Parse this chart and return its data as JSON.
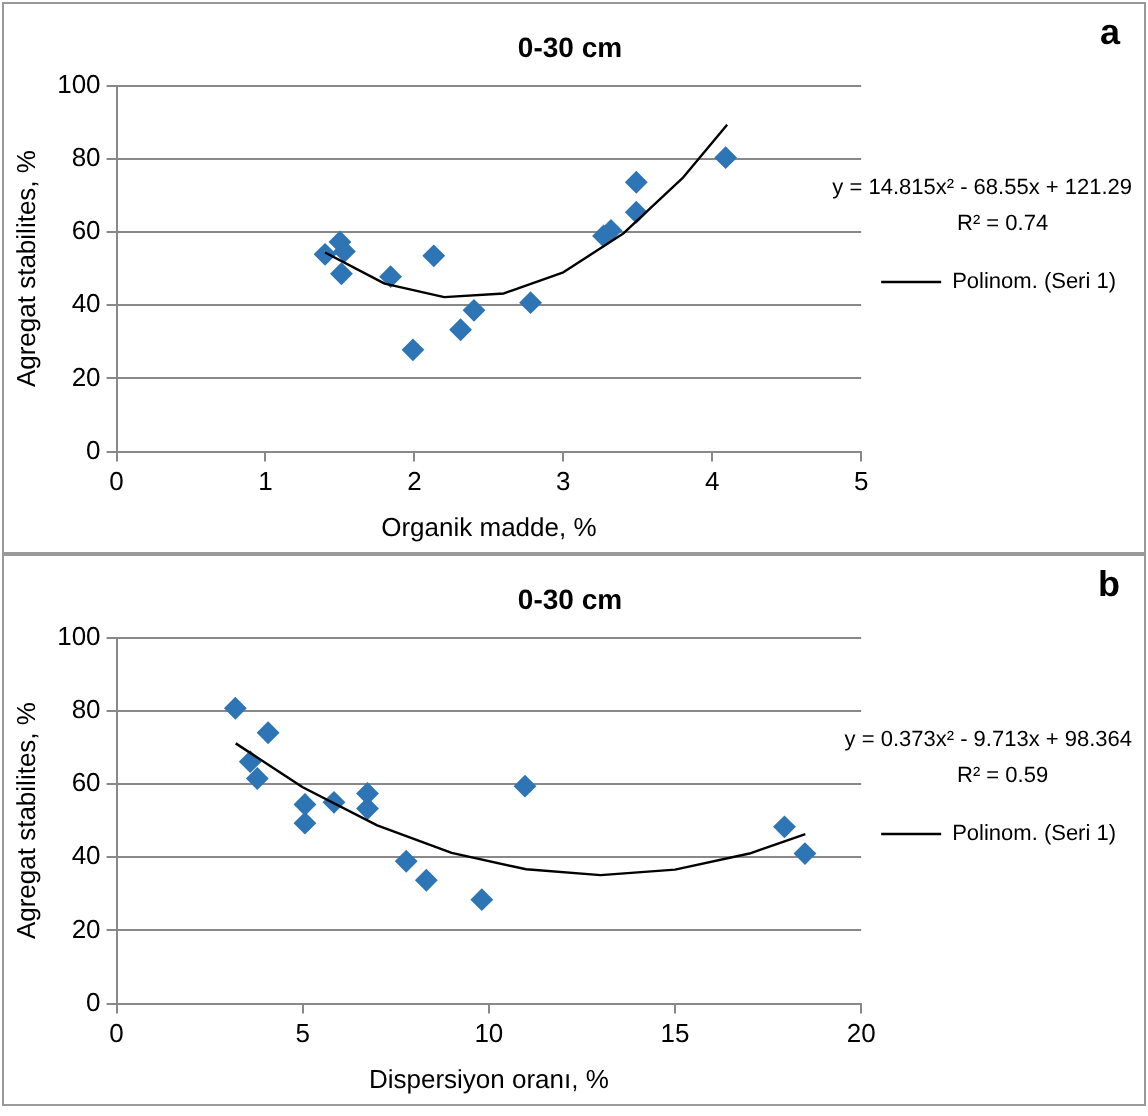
{
  "chart_data": [
    {
      "type": "scatter",
      "title": "0-30 cm",
      "xlabel": "Organik madde, %",
      "ylabel": "Agregat stabilites, %",
      "xlim": [
        0,
        5
      ],
      "xticks": [
        0,
        1,
        2,
        3,
        4,
        5
      ],
      "ylim": [
        0,
        100
      ],
      "yticks": [
        0,
        20,
        40,
        60,
        80,
        100
      ],
      "grid": "y",
      "legend": "right",
      "marker": "diamond",
      "annotations": [
        "a",
        "y = 14.815x² - 68.55x + 121.29",
        "R² = 0.74"
      ],
      "series": [
        {
          "color": "#2e75b6",
          "x": [
            1.4,
            1.5,
            1.53,
            1.51,
            1.84,
            2.13,
            1.99,
            2.31,
            2.4,
            2.78,
            3.27,
            3.32,
            3.49,
            3.49,
            4.09
          ],
          "values": [
            53.9,
            57.3,
            54.7,
            48.6,
            47.8,
            53.5,
            27.8,
            33.3,
            38.6,
            40.7,
            58.9,
            60.4,
            65.4,
            73.6,
            80.3
          ]
        },
        {
          "type": "line",
          "name": "Polinom. (Seri 1)",
          "color": "#000000",
          "marker": "none",
          "x": [
            1.4,
            1.8,
            2.2,
            2.6,
            3.0,
            3.4,
            3.8,
            4.1
          ],
          "values": [
            54.4,
            45.9,
            42.2,
            43.2,
            49.0,
            59.5,
            74.7,
            89.3
          ]
        }
      ]
    },
    {
      "type": "scatter",
      "title": "0-30 cm",
      "xlabel": "Dispersiyon oranı, %",
      "ylabel": "Agregat stabilites, %",
      "xlim": [
        0,
        20
      ],
      "xticks": [
        0,
        5,
        10,
        15,
        20
      ],
      "ylim": [
        0,
        100
      ],
      "yticks": [
        0,
        20,
        40,
        60,
        80,
        100
      ],
      "grid": "y",
      "legend": "right",
      "marker": "diamond",
      "annotations": [
        "b",
        "y = 0.373x² - 9.713x + 98.364",
        "R² = 0.59"
      ],
      "series": [
        {
          "color": "#2e75b6",
          "x": [
            3.19,
            4.07,
            3.59,
            3.78,
            5.06,
            5.06,
            5.84,
            6.74,
            6.74,
            7.78,
            8.32,
            9.81,
            10.97,
            17.94,
            18.49
          ],
          "values": [
            80.7,
            74.0,
            66.1,
            61.5,
            54.4,
            49.3,
            55.0,
            57.4,
            53.3,
            38.9,
            33.7,
            28.4,
            59.4,
            48.3,
            41.0
          ]
        },
        {
          "type": "line",
          "name": "Polinom. (Seri 1)",
          "color": "#000000",
          "marker": "none",
          "x": [
            3.2,
            5,
            7,
            9,
            11,
            13,
            15,
            17,
            18.5
          ],
          "values": [
            71.1,
            59.1,
            48.7,
            41.2,
            36.7,
            35.1,
            36.6,
            41.0,
            46.3
          ]
        }
      ]
    }
  ]
}
